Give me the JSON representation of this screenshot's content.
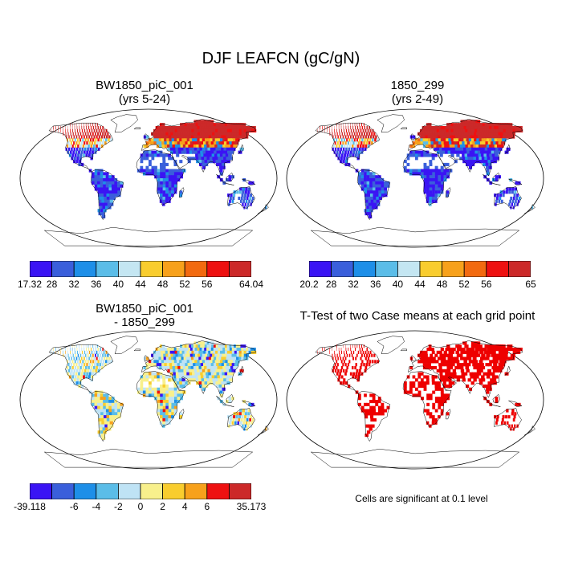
{
  "figure": {
    "title": "DJF LEAFCN (gC/gN)"
  },
  "panels": [
    {
      "title_line1": "BW1850_piC_001",
      "title_line2": "(yrs 5-24)",
      "fill": "field_a"
    },
    {
      "title_line1": "1850_299",
      "title_line2": "(yrs 2-49)",
      "fill": "field_b"
    },
    {
      "title_line1": "BW1850_piC_001",
      "title_line2": "- 1850_299",
      "fill": "diff"
    },
    {
      "title_line1": "T-Test of two Case means at each grid point",
      "title_line2": "",
      "fill": "ttest"
    }
  ],
  "colorbars": [
    {
      "colors": [
        "#3a14f4",
        "#3a5fdb",
        "#1e8fe8",
        "#5bbde8",
        "#c4e6f2",
        "#f9cd2e",
        "#f7a11b",
        "#f26a10",
        "#ee1111",
        "#cc2929"
      ],
      "labels": [
        "17.32",
        "28",
        "32",
        "36",
        "40",
        "44",
        "48",
        "52",
        "56",
        "64.04"
      ]
    },
    {
      "colors": [
        "#3a14f4",
        "#3a5fdb",
        "#1e8fe8",
        "#5bbde8",
        "#c4e6f2",
        "#f9cd2e",
        "#f7a11b",
        "#f26a10",
        "#ee1111",
        "#cc2929"
      ],
      "labels": [
        "20.2",
        "28",
        "32",
        "36",
        "40",
        "44",
        "48",
        "52",
        "56",
        "65"
      ]
    },
    {
      "colors": [
        "#3a14f4",
        "#3a5fdb",
        "#1e8fe8",
        "#5bbde8",
        "#bfe3f5",
        "#f8f08c",
        "#f9cd2e",
        "#f7a11b",
        "#ee1111",
        "#cc2929"
      ],
      "labels": [
        "-39.118",
        "-6",
        "-4",
        "-2",
        "0",
        "2",
        "4",
        "6",
        "35.173"
      ]
    }
  ],
  "footnote": "Cells are significant at 0.1 level",
  "colors": {
    "land_outline": "#000000",
    "significance": "#ee0000"
  }
}
